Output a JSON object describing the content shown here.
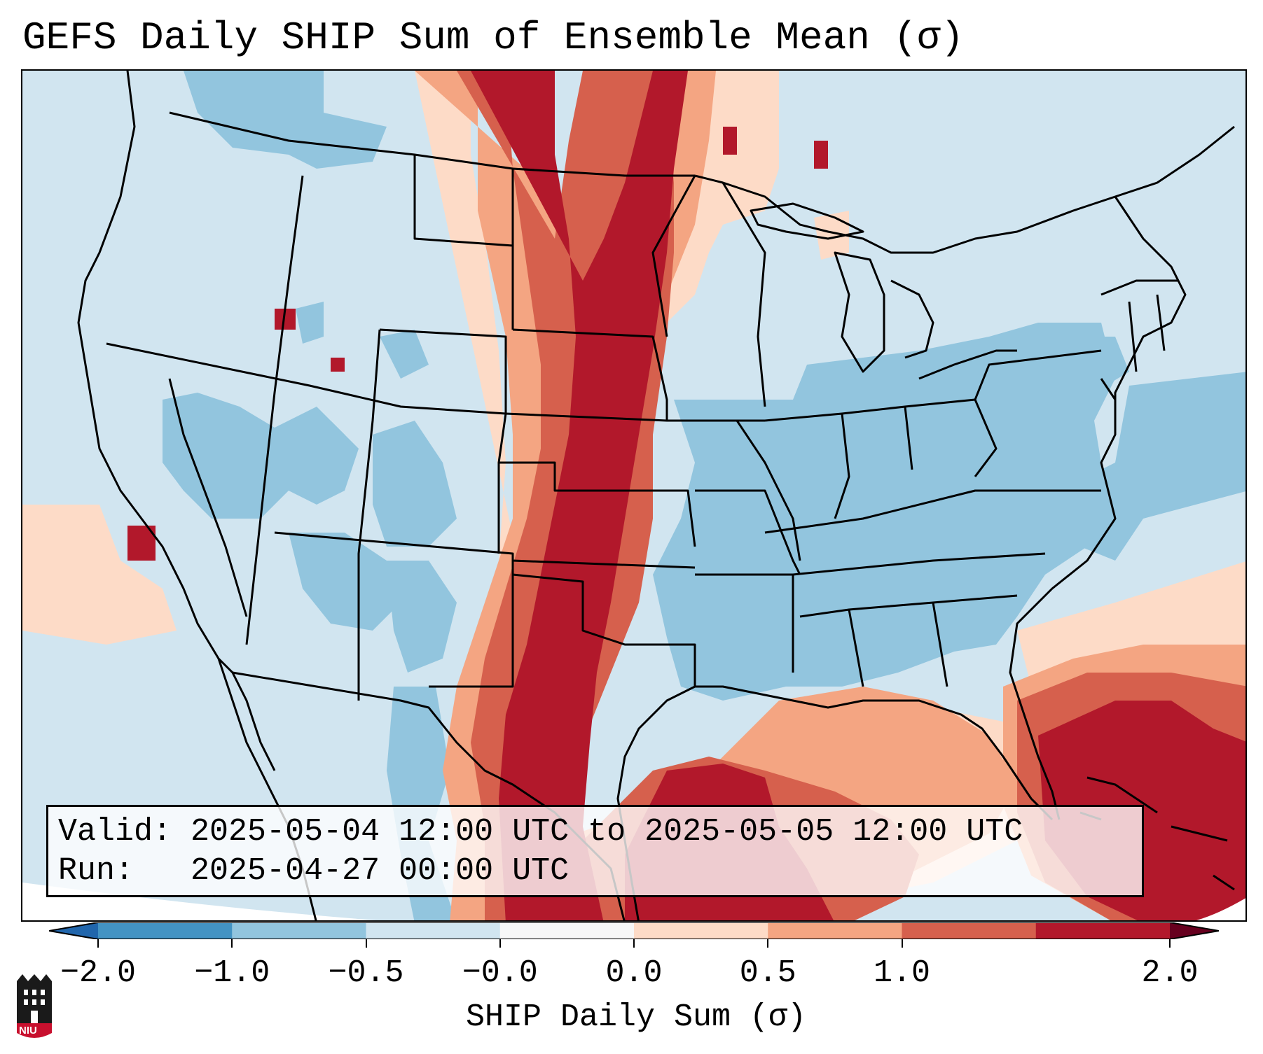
{
  "title": "GEFS Daily SHIP Sum of Ensemble Mean (σ)",
  "info": {
    "valid_label": "Valid:",
    "valid_text": "2025-05-04 12:00 UTC to 2025-05-05 12:00 UTC",
    "run_label": "Run:",
    "run_text": "2025-04-27 00:00 UTC"
  },
  "colorbar": {
    "label": "SHIP Daily Sum (σ)",
    "ticks": [
      "−2.0",
      "−1.0",
      "−0.5",
      "−0.0",
      "0.0",
      "0.5",
      "1.0",
      "2.0"
    ],
    "colors": [
      "#4393c3",
      "#92c5de",
      "#d1e5f0",
      "#f7f7f7",
      "#fddbc7",
      "#f4a582",
      "#d6604d",
      "#b2182b"
    ],
    "under_color": "#2166ac",
    "over_color": "#67001f"
  },
  "logo": {
    "text": "NIU",
    "icon": "niu-castle-logo-icon"
  },
  "map": {
    "background_color": "#d1e5f0",
    "regions_shown": "contiguous United States, southern Canada, northern Mexico, Gulf of Mexico, Caribbean"
  }
}
